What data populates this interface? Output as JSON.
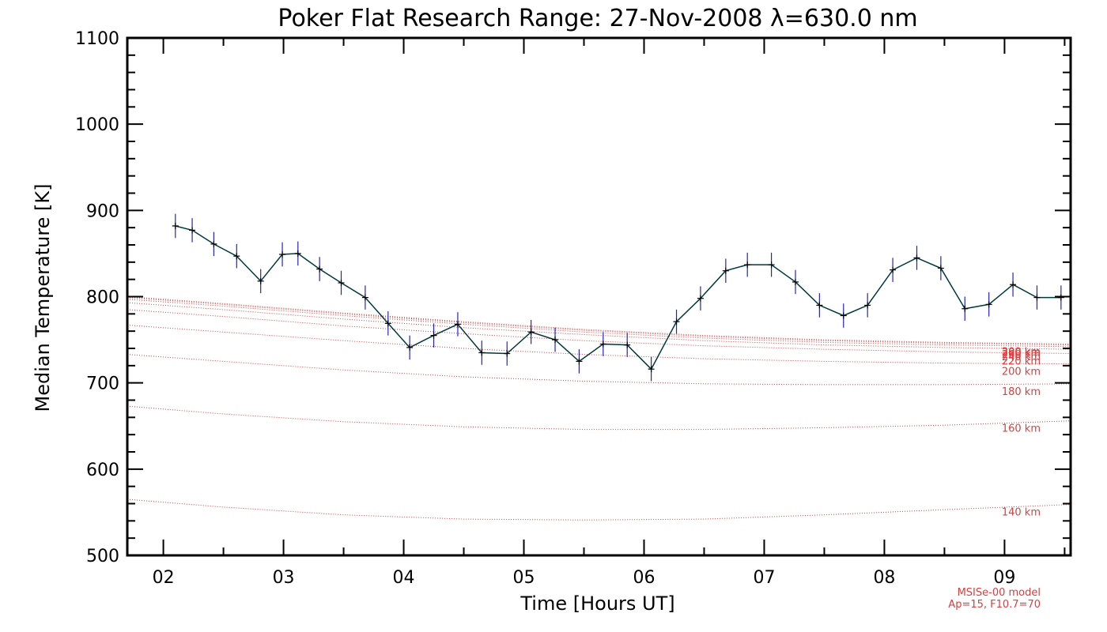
{
  "chart_data": {
    "type": "line",
    "title": "Poker Flat Research Range: 27-Nov-2008 λ=630.0 nm",
    "xlabel": "Time [Hours UT]",
    "ylabel": "Median Temperature [K]",
    "xlim": [
      1.7,
      9.55
    ],
    "ylim": [
      500,
      1100
    ],
    "xticks": [
      2,
      3,
      4,
      5,
      6,
      7,
      8,
      9
    ],
    "xtick_labels": [
      "02",
      "03",
      "04",
      "05",
      "06",
      "07",
      "08",
      "09"
    ],
    "yticks": [
      500,
      600,
      700,
      800,
      900,
      1000,
      1100
    ],
    "ytick_labels": [
      "500",
      "600",
      "700",
      "800",
      "900",
      "1000",
      "1100"
    ],
    "colors": {
      "measurement_line": "#003a3a",
      "marker": "#000000",
      "error_bar": "#2222cc",
      "model": "#e23b3b"
    },
    "measurements": {
      "x": [
        2.1,
        2.24,
        2.42,
        2.61,
        2.81,
        2.99,
        3.12,
        3.3,
        3.48,
        3.68,
        3.87,
        4.05,
        4.25,
        4.45,
        4.65,
        4.86,
        5.06,
        5.26,
        5.46,
        5.66,
        5.86,
        6.06,
        6.27,
        6.47,
        6.68,
        6.86,
        7.06,
        7.26,
        7.46,
        7.66,
        7.86,
        8.07,
        8.27,
        8.47,
        8.67,
        8.87,
        9.07,
        9.27,
        9.47
      ],
      "y": [
        882,
        877,
        861,
        847,
        818,
        849,
        850,
        832,
        816,
        799,
        769,
        741,
        755,
        768,
        735,
        734,
        759,
        750,
        725,
        745,
        744,
        716,
        771,
        798,
        830,
        837,
        837,
        817,
        790,
        778,
        790,
        831,
        845,
        833,
        786,
        791,
        814,
        799,
        799
      ],
      "error": 14
    },
    "model": {
      "name": "MSISe-00 model",
      "params": "Ap=15, F10.7=70",
      "x": [
        1.7,
        2.5,
        3.5,
        4.5,
        5.5,
        6.5,
        7.5,
        8.5,
        9.55
      ],
      "series": [
        {
          "name": "140 km",
          "values": [
            565,
            556,
            547,
            542,
            541,
            542,
            547,
            553,
            559
          ]
        },
        {
          "name": "160 km",
          "values": [
            673,
            664,
            655,
            649,
            646,
            646,
            648,
            651,
            656
          ]
        },
        {
          "name": "180 km",
          "values": [
            733,
            725,
            715,
            707,
            702,
            699,
            698,
            698,
            699
          ]
        },
        {
          "name": "200 km",
          "values": [
            767,
            759,
            749,
            740,
            733,
            728,
            725,
            723,
            722
          ]
        },
        {
          "name": "220 km",
          "values": [
            785,
            777,
            766,
            757,
            749,
            743,
            739,
            736,
            734
          ]
        },
        {
          "name": "240 km",
          "values": [
            793,
            785,
            774,
            764,
            756,
            749,
            744,
            741,
            739
          ]
        },
        {
          "name": "260 km",
          "values": [
            797,
            789,
            778,
            768,
            759,
            752,
            747,
            744,
            742
          ]
        },
        {
          "name": "280 km",
          "values": [
            799,
            791,
            780,
            770,
            761,
            754,
            749,
            746,
            744
          ]
        },
        {
          "name": "300 km",
          "values": [
            800,
            792,
            781,
            771,
            762,
            755,
            750,
            747,
            745
          ]
        }
      ]
    },
    "model_label_text": [
      "140 km",
      "160 km",
      "180 km",
      "200 km",
      "220 km",
      "240 km",
      "260 km",
      "280 km",
      "300 km"
    ]
  }
}
